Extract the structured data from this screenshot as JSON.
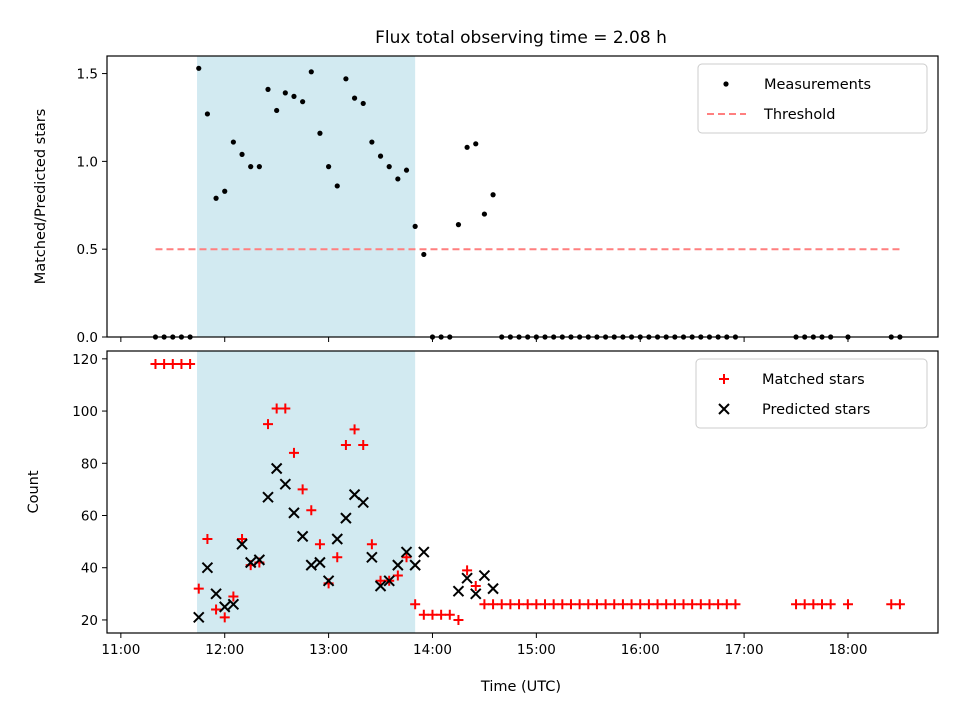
{
  "chart_data": {
    "title": "Flux total observing time = 2.08 h",
    "highlight_band": {
      "start": "11:44",
      "end": "13:50",
      "color": "#add8e6"
    },
    "x_axis": {
      "label": "Time (UTC)",
      "range": [
        "10:52",
        "18:52"
      ],
      "ticks": [
        "11:00",
        "12:00",
        "13:00",
        "14:00",
        "15:00",
        "16:00",
        "17:00",
        "18:00"
      ]
    },
    "panels": [
      {
        "type": "scatter",
        "ylabel": "Matched/Predicted stars",
        "ylim": [
          0,
          1.6
        ],
        "yticks": [
          "0.0",
          "0.5",
          "1.0",
          "1.5"
        ],
        "legend_position": "top-right",
        "series": [
          {
            "name": "Measurements",
            "marker": "dot",
            "color": "#000000",
            "points": [
              [
                "11:20",
                0
              ],
              [
                "11:25",
                0
              ],
              [
                "11:30",
                0
              ],
              [
                "11:35",
                0
              ],
              [
                "11:40",
                0
              ],
              [
                "11:45",
                1.53
              ],
              [
                "11:50",
                1.27
              ],
              [
                "11:55",
                0.79
              ],
              [
                "12:00",
                0.83
              ],
              [
                "12:05",
                1.11
              ],
              [
                "12:10",
                1.04
              ],
              [
                "12:15",
                0.97
              ],
              [
                "12:20",
                0.97
              ],
              [
                "12:25",
                1.41
              ],
              [
                "12:30",
                1.29
              ],
              [
                "12:35",
                1.39
              ],
              [
                "12:40",
                1.37
              ],
              [
                "12:45",
                1.34
              ],
              [
                "12:50",
                1.51
              ],
              [
                "12:55",
                1.16
              ],
              [
                "13:00",
                0.97
              ],
              [
                "13:05",
                0.86
              ],
              [
                "13:10",
                1.47
              ],
              [
                "13:15",
                1.36
              ],
              [
                "13:20",
                1.33
              ],
              [
                "13:25",
                1.11
              ],
              [
                "13:30",
                1.03
              ],
              [
                "13:35",
                0.97
              ],
              [
                "13:40",
                0.9
              ],
              [
                "13:45",
                0.95
              ],
              [
                "13:50",
                0.63
              ],
              [
                "13:55",
                0.47
              ],
              [
                "14:00",
                0
              ],
              [
                "14:05",
                0
              ],
              [
                "14:10",
                0
              ],
              [
                "14:15",
                0.64
              ],
              [
                "14:20",
                1.08
              ],
              [
                "14:25",
                1.1
              ],
              [
                "14:30",
                0.7
              ],
              [
                "14:35",
                0.81
              ],
              [
                "14:40",
                0
              ],
              [
                "14:45",
                0
              ],
              [
                "14:50",
                0
              ],
              [
                "14:55",
                0
              ],
              [
                "15:00",
                0
              ],
              [
                "15:05",
                0
              ],
              [
                "15:10",
                0
              ],
              [
                "15:15",
                0
              ],
              [
                "15:20",
                0
              ],
              [
                "15:25",
                0
              ],
              [
                "15:30",
                0
              ],
              [
                "15:35",
                0
              ],
              [
                "15:40",
                0
              ],
              [
                "15:45",
                0
              ],
              [
                "15:50",
                0
              ],
              [
                "15:55",
                0
              ],
              [
                "16:00",
                0
              ],
              [
                "16:05",
                0
              ],
              [
                "16:10",
                0
              ],
              [
                "16:15",
                0
              ],
              [
                "16:20",
                0
              ],
              [
                "16:25",
                0
              ],
              [
                "16:30",
                0
              ],
              [
                "16:35",
                0
              ],
              [
                "16:40",
                0
              ],
              [
                "16:45",
                0
              ],
              [
                "16:50",
                0
              ],
              [
                "16:55",
                0
              ],
              [
                "17:30",
                0
              ],
              [
                "17:35",
                0
              ],
              [
                "17:40",
                0
              ],
              [
                "17:45",
                0
              ],
              [
                "17:50",
                0
              ],
              [
                "18:00",
                0
              ],
              [
                "18:25",
                0
              ],
              [
                "18:30",
                0
              ]
            ]
          },
          {
            "name": "Threshold",
            "type": "line",
            "style": "dashed",
            "color": "#ff7f7f",
            "points": [
              [
                "11:20",
                0.5
              ],
              [
                "18:30",
                0.5
              ]
            ]
          }
        ]
      },
      {
        "type": "scatter",
        "ylabel": "Count",
        "ylim": [
          15,
          123
        ],
        "yticks": [
          "20",
          "40",
          "60",
          "80",
          "100",
          "120"
        ],
        "legend_position": "top-right",
        "series": [
          {
            "name": "Matched stars",
            "marker": "plus",
            "color": "#ff0000",
            "points": [
              [
                "11:20",
                118
              ],
              [
                "11:25",
                118
              ],
              [
                "11:30",
                118
              ],
              [
                "11:35",
                118
              ],
              [
                "11:40",
                118
              ],
              [
                "11:45",
                32
              ],
              [
                "11:50",
                51
              ],
              [
                "11:55",
                24
              ],
              [
                "12:00",
                21
              ],
              [
                "12:05",
                29
              ],
              [
                "12:10",
                51
              ],
              [
                "12:15",
                41
              ],
              [
                "12:20",
                42
              ],
              [
                "12:25",
                95
              ],
              [
                "12:30",
                101
              ],
              [
                "12:35",
                101
              ],
              [
                "12:40",
                84
              ],
              [
                "12:45",
                70
              ],
              [
                "12:50",
                62
              ],
              [
                "12:55",
                49
              ],
              [
                "13:00",
                34
              ],
              [
                "13:05",
                44
              ],
              [
                "13:10",
                87
              ],
              [
                "13:15",
                93
              ],
              [
                "13:20",
                87
              ],
              [
                "13:25",
                49
              ],
              [
                "13:30",
                35
              ],
              [
                "13:35",
                35
              ],
              [
                "13:40",
                37
              ],
              [
                "13:45",
                44
              ],
              [
                "13:50",
                26
              ],
              [
                "13:55",
                22
              ],
              [
                "14:00",
                22
              ],
              [
                "14:05",
                22
              ],
              [
                "14:10",
                22
              ],
              [
                "14:15",
                20
              ],
              [
                "14:20",
                39
              ],
              [
                "14:25",
                33
              ],
              [
                "14:30",
                26
              ],
              [
                "14:35",
                26
              ],
              [
                "14:40",
                26
              ],
              [
                "14:45",
                26
              ],
              [
                "14:50",
                26
              ],
              [
                "14:55",
                26
              ],
              [
                "15:00",
                26
              ],
              [
                "15:05",
                26
              ],
              [
                "15:10",
                26
              ],
              [
                "15:15",
                26
              ],
              [
                "15:20",
                26
              ],
              [
                "15:25",
                26
              ],
              [
                "15:30",
                26
              ],
              [
                "15:35",
                26
              ],
              [
                "15:40",
                26
              ],
              [
                "15:45",
                26
              ],
              [
                "15:50",
                26
              ],
              [
                "15:55",
                26
              ],
              [
                "16:00",
                26
              ],
              [
                "16:05",
                26
              ],
              [
                "16:10",
                26
              ],
              [
                "16:15",
                26
              ],
              [
                "16:20",
                26
              ],
              [
                "16:25",
                26
              ],
              [
                "16:30",
                26
              ],
              [
                "16:35",
                26
              ],
              [
                "16:40",
                26
              ],
              [
                "16:45",
                26
              ],
              [
                "16:50",
                26
              ],
              [
                "16:55",
                26
              ],
              [
                "17:30",
                26
              ],
              [
                "17:35",
                26
              ],
              [
                "17:40",
                26
              ],
              [
                "17:45",
                26
              ],
              [
                "17:50",
                26
              ],
              [
                "18:00",
                26
              ],
              [
                "18:25",
                26
              ],
              [
                "18:30",
                26
              ]
            ]
          },
          {
            "name": "Predicted stars",
            "marker": "x",
            "color": "#000000",
            "points": [
              [
                "11:45",
                21
              ],
              [
                "11:50",
                40
              ],
              [
                "11:55",
                30
              ],
              [
                "12:00",
                25
              ],
              [
                "12:05",
                26
              ],
              [
                "12:10",
                49
              ],
              [
                "12:15",
                42
              ],
              [
                "12:20",
                43
              ],
              [
                "12:25",
                67
              ],
              [
                "12:30",
                78
              ],
              [
                "12:35",
                72
              ],
              [
                "12:40",
                61
              ],
              [
                "12:45",
                52
              ],
              [
                "12:50",
                41
              ],
              [
                "12:55",
                42
              ],
              [
                "13:00",
                35
              ],
              [
                "13:05",
                51
              ],
              [
                "13:10",
                59
              ],
              [
                "13:15",
                68
              ],
              [
                "13:20",
                65
              ],
              [
                "13:25",
                44
              ],
              [
                "13:30",
                33
              ],
              [
                "13:35",
                35
              ],
              [
                "13:40",
                41
              ],
              [
                "13:45",
                46
              ],
              [
                "13:50",
                41
              ],
              [
                "13:55",
                46
              ],
              [
                "14:15",
                31
              ],
              [
                "14:20",
                36
              ],
              [
                "14:25",
                30
              ],
              [
                "14:30",
                37
              ],
              [
                "14:35",
                32
              ]
            ]
          }
        ]
      }
    ]
  }
}
